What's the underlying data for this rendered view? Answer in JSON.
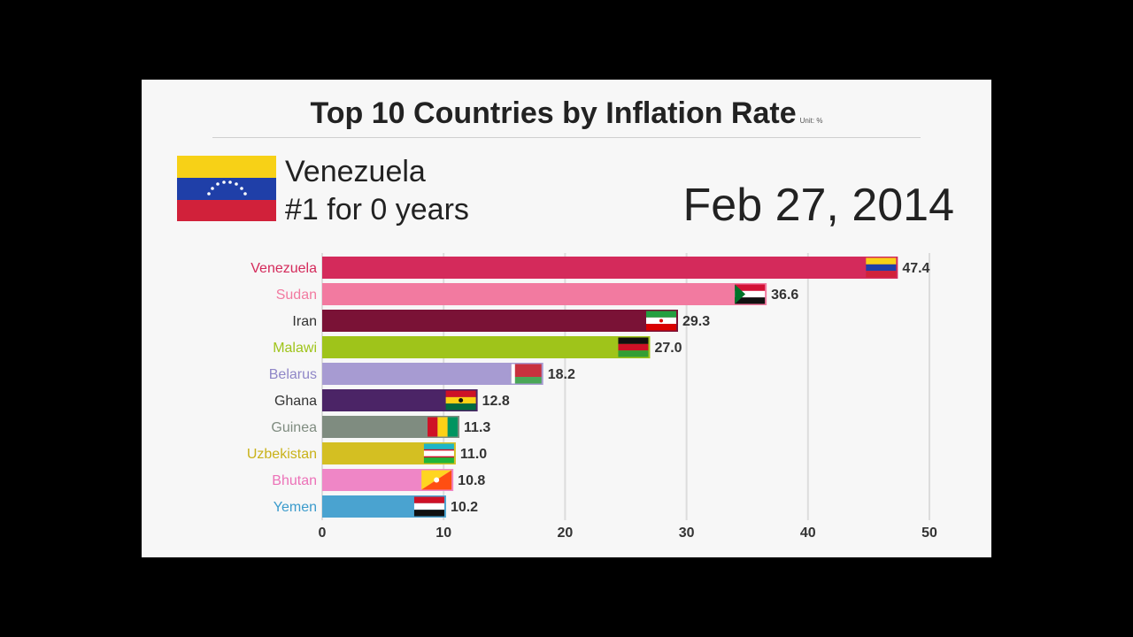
{
  "title": "Top 10 Countries by Inflation Rate",
  "unit_note": "Unit: %",
  "leader": {
    "name": "Venezuela",
    "rank_text": "#1 for 0 years"
  },
  "date": "Feb 27, 2014",
  "chart_data": {
    "type": "bar",
    "orientation": "horizontal",
    "title": "Top 10 Countries by Inflation Rate",
    "unit": "Unit: %",
    "categories": [
      "Venezuela",
      "Sudan",
      "Iran",
      "Malawi",
      "Belarus",
      "Ghana",
      "Guinea",
      "Uzbekistan",
      "Bhutan",
      "Yemen"
    ],
    "values": [
      47.4,
      36.6,
      29.3,
      27.0,
      18.2,
      12.8,
      11.3,
      11.0,
      10.8,
      10.2
    ],
    "value_labels": [
      "47.4",
      "36.6",
      "29.3",
      "27.0",
      "18.2",
      "12.8",
      "11.3",
      "11.0",
      "10.8",
      "10.2"
    ],
    "colors": [
      "#d42a5b",
      "#f27aa0",
      "#7a1236",
      "#9fc41a",
      "#a79bd2",
      "#4b2466",
      "#7f8c80",
      "#d4bf22",
      "#ef86c6",
      "#4aa3d0"
    ],
    "label_colors": [
      "#d42a5b",
      "#f27aa0",
      "#333333",
      "#9fc41a",
      "#8f86c7",
      "#333333",
      "#7f8c80",
      "#c9b21a",
      "#ec72b8",
      "#3b9bcc"
    ],
    "xticks": [
      "0",
      "10",
      "20",
      "30",
      "40",
      "50"
    ],
    "xlim": [
      0,
      50
    ],
    "grid": true
  }
}
